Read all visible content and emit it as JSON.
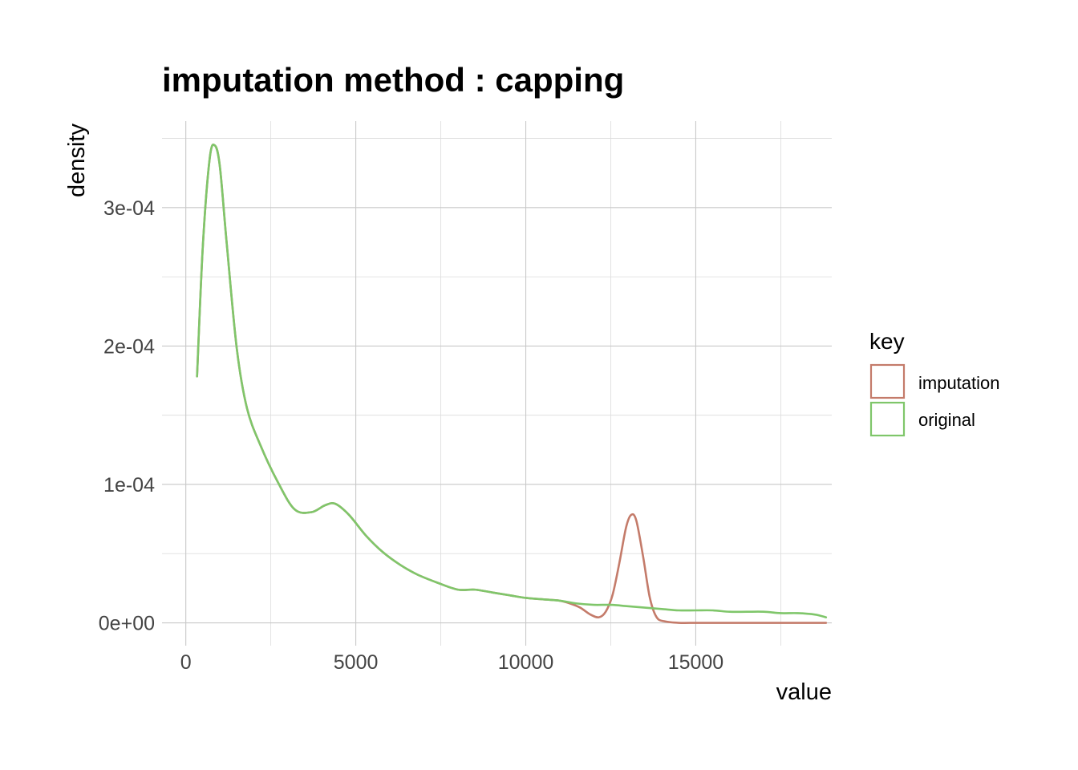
{
  "chart_data": {
    "type": "line",
    "title": "imputation method : capping",
    "xlabel": "value",
    "ylabel": "density",
    "xlim": [
      -700,
      19000
    ],
    "ylim": [
      -1.65e-05,
      0.0003625
    ],
    "x_ticks": [
      0,
      5000,
      10000,
      15000
    ],
    "x_tick_labels": [
      "0",
      "5000",
      "10000",
      "15000"
    ],
    "y_ticks": [
      0,
      0.0001,
      0.0002,
      0.0003
    ],
    "y_tick_labels": [
      "0e+00",
      "1e-04",
      "2e-04",
      "3e-04"
    ],
    "x_minor": [
      2500,
      7500,
      12500,
      17500
    ],
    "y_minor": [
      5e-05,
      0.00015,
      0.00025,
      0.00035
    ],
    "grid": true,
    "legend": {
      "title": "key",
      "position": "right",
      "entries": [
        "imputation",
        "original"
      ]
    },
    "series": [
      {
        "name": "imputation",
        "color": "#c47b6a",
        "x": [
          330,
          500,
          700,
          850,
          1000,
          1200,
          1500,
          1800,
          2200,
          2700,
          3200,
          3700,
          4100,
          4400,
          4800,
          5300,
          5800,
          6300,
          6800,
          7400,
          8000,
          8500,
          9000,
          9500,
          10000,
          10500,
          11000,
          11300,
          11600,
          11900,
          12150,
          12350,
          12550,
          12750,
          12950,
          13100,
          13250,
          13450,
          13650,
          13850,
          14100,
          14500,
          15000,
          15500,
          16000,
          16500,
          17000,
          17500,
          18000,
          18500,
          18830
        ],
        "y": [
          0.000178,
          0.000272,
          0.000335,
          0.000345,
          0.00033,
          0.000275,
          0.000198,
          0.000155,
          0.000128,
          0.000102,
          8.2e-05,
          8e-05,
          8.5e-05,
          8.6e-05,
          7.8e-05,
          6.3e-05,
          5.1e-05,
          4.2e-05,
          3.5e-05,
          2.9e-05,
          2.4e-05,
          2.4e-05,
          2.2e-05,
          2e-05,
          1.8e-05,
          1.7e-05,
          1.6e-05,
          1.4e-05,
          1.1e-05,
          6e-06,
          4e-06,
          8e-06,
          2e-05,
          4.3e-05,
          6.9e-05,
          7.8e-05,
          7.4e-05,
          4.8e-05,
          1.8e-05,
          4e-06,
          1e-06,
          0.0,
          0.0,
          0.0,
          0.0,
          0.0,
          0.0,
          0.0,
          0.0,
          0.0,
          0.0
        ]
      },
      {
        "name": "original",
        "color": "#7fc66a",
        "x": [
          330,
          500,
          700,
          850,
          1000,
          1200,
          1500,
          1800,
          2200,
          2700,
          3200,
          3700,
          4100,
          4400,
          4800,
          5300,
          5800,
          6300,
          6800,
          7400,
          8000,
          8500,
          9000,
          9500,
          10000,
          10500,
          11000,
          11500,
          12000,
          12500,
          13000,
          13500,
          14000,
          14500,
          15000,
          15500,
          16000,
          16500,
          17000,
          17500,
          18000,
          18500,
          18830
        ],
        "y": [
          0.000178,
          0.000272,
          0.000335,
          0.000345,
          0.00033,
          0.000275,
          0.000198,
          0.000155,
          0.000128,
          0.000102,
          8.2e-05,
          8e-05,
          8.5e-05,
          8.6e-05,
          7.8e-05,
          6.3e-05,
          5.1e-05,
          4.2e-05,
          3.5e-05,
          2.9e-05,
          2.4e-05,
          2.4e-05,
          2.2e-05,
          2e-05,
          1.8e-05,
          1.7e-05,
          1.6e-05,
          1.4e-05,
          1.3e-05,
          1.3e-05,
          1.2e-05,
          1.1e-05,
          1e-05,
          9e-06,
          9e-06,
          9e-06,
          8e-06,
          8e-06,
          8e-06,
          7e-06,
          7e-06,
          6e-06,
          4e-06
        ]
      }
    ]
  }
}
